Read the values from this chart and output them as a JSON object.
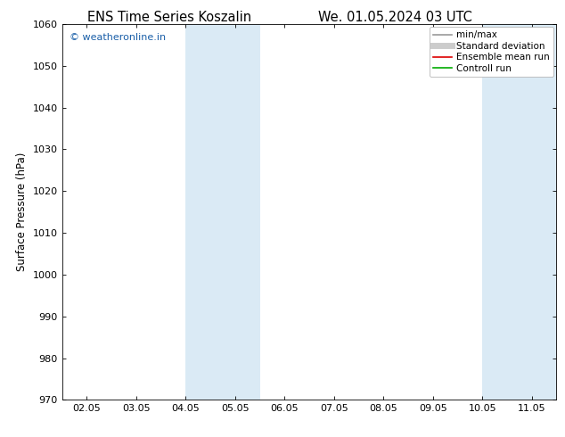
{
  "title_left": "ENS Time Series Koszalin",
  "title_right": "We. 01.05.2024 03 UTC",
  "ylabel": "Surface Pressure (hPa)",
  "ylim": [
    970,
    1060
  ],
  "yticks": [
    970,
    980,
    990,
    1000,
    1010,
    1020,
    1030,
    1040,
    1050,
    1060
  ],
  "xtick_labels": [
    "02.05",
    "03.05",
    "04.05",
    "05.05",
    "06.05",
    "07.05",
    "08.05",
    "09.05",
    "10.05",
    "11.05"
  ],
  "xtick_positions": [
    0,
    1,
    2,
    3,
    4,
    5,
    6,
    7,
    8,
    9
  ],
  "xlim": [
    -0.5,
    9.5
  ],
  "shade_bands": [
    {
      "xmin": 2.0,
      "xmax": 2.5,
      "color": "#ddeef8"
    },
    {
      "xmin": 3.0,
      "xmax": 3.5,
      "color": "#ddeef8"
    },
    {
      "xmin": 7.5,
      "xmax": 8.0,
      "color": "#ddeef8"
    },
    {
      "xmin": 8.5,
      "xmax": 9.0,
      "color": "#ddeef8"
    }
  ],
  "watermark": "© weatheronline.in",
  "watermark_color": "#1a5fa8",
  "legend_entries": [
    {
      "label": "min/max",
      "color": "#999999",
      "lw": 1.2,
      "ls": "-"
    },
    {
      "label": "Standard deviation",
      "color": "#cccccc",
      "lw": 5,
      "ls": "-"
    },
    {
      "label": "Ensemble mean run",
      "color": "#dd0000",
      "lw": 1.2,
      "ls": "-"
    },
    {
      "label": "Controll run",
      "color": "#00aa00",
      "lw": 1.2,
      "ls": "-"
    }
  ],
  "background_color": "#ffffff",
  "plot_bg_color": "#ffffff",
  "title_fontsize": 10.5,
  "tick_fontsize": 8,
  "ylabel_fontsize": 8.5,
  "legend_fontsize": 7.5
}
